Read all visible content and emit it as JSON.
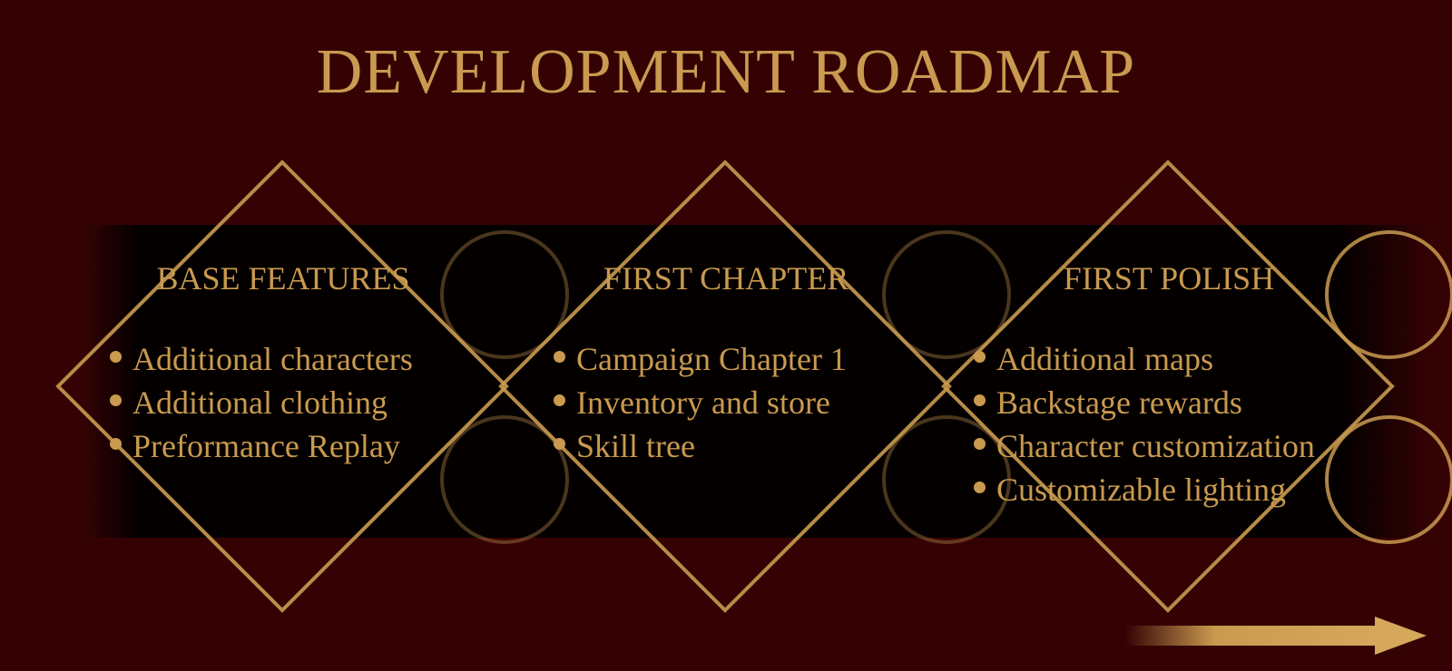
{
  "title": "DEVELOPMENT ROADMAP",
  "colors": {
    "background": "#350204",
    "panel": "#050000",
    "gold": "#c99a4f"
  },
  "phases": [
    {
      "heading": "BASE FEATURES",
      "items": [
        "Additional characters",
        "Additional clothing",
        "Preformance Replay"
      ]
    },
    {
      "heading": "FIRST CHAPTER",
      "items": [
        "Campaign Chapter 1",
        "Inventory and store",
        "Skill tree"
      ]
    },
    {
      "heading": "FIRST POLISH",
      "items": [
        "Additional maps",
        "Backstage rewards",
        "Character customization",
        "Customizable lighting"
      ]
    }
  ],
  "direction_arrow": "arrow-right-icon"
}
